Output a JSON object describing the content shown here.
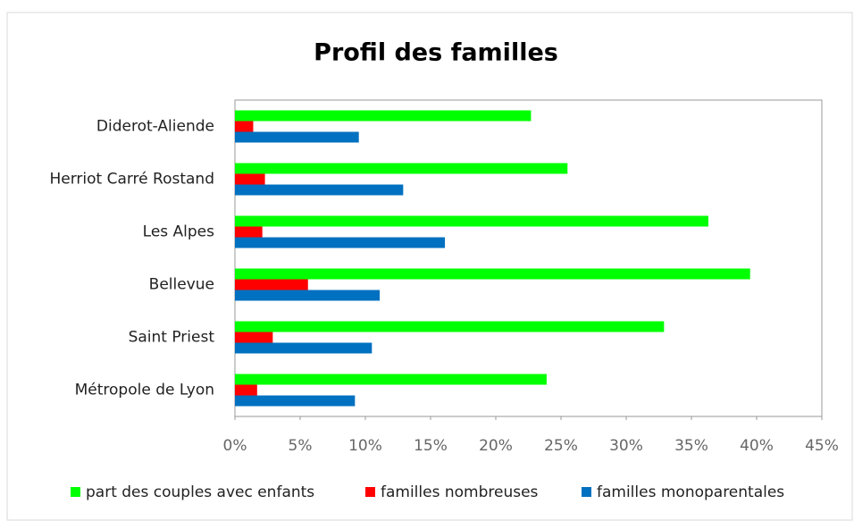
{
  "chart_data": {
    "type": "bar",
    "orientation": "horizontal",
    "title": "Profil des familles",
    "categories": [
      "Diderot-Aliende",
      "Herriot Carré Rostand",
      "Les Alpes",
      "Bellevue",
      "Saint Priest",
      "Métropole de Lyon"
    ],
    "series": [
      {
        "name": "part des couples avec enfants",
        "color": "#00ff00",
        "values": [
          22.7,
          25.5,
          36.3,
          39.5,
          32.9,
          23.9
        ]
      },
      {
        "name": "familles nombreuses",
        "color": "#ff0000",
        "values": [
          1.4,
          2.3,
          2.1,
          5.6,
          2.9,
          1.7
        ]
      },
      {
        "name": "familles monoparentales",
        "color": "#0070c0",
        "values": [
          9.5,
          12.9,
          16.1,
          11.1,
          10.5,
          9.2
        ]
      }
    ],
    "xlim": [
      0,
      45
    ],
    "xticks": [
      {
        "value": 0,
        "label": "0%"
      },
      {
        "value": 5,
        "label": "5%"
      },
      {
        "value": 10,
        "label": "10%"
      },
      {
        "value": 15,
        "label": "15%"
      },
      {
        "value": 20,
        "label": "20%"
      },
      {
        "value": 25,
        "label": "25%"
      },
      {
        "value": 30,
        "label": "30%"
      },
      {
        "value": 35,
        "label": "35%"
      },
      {
        "value": 40,
        "label": "40%"
      },
      {
        "value": 45,
        "label": "45%"
      }
    ],
    "legend": "bottom"
  }
}
